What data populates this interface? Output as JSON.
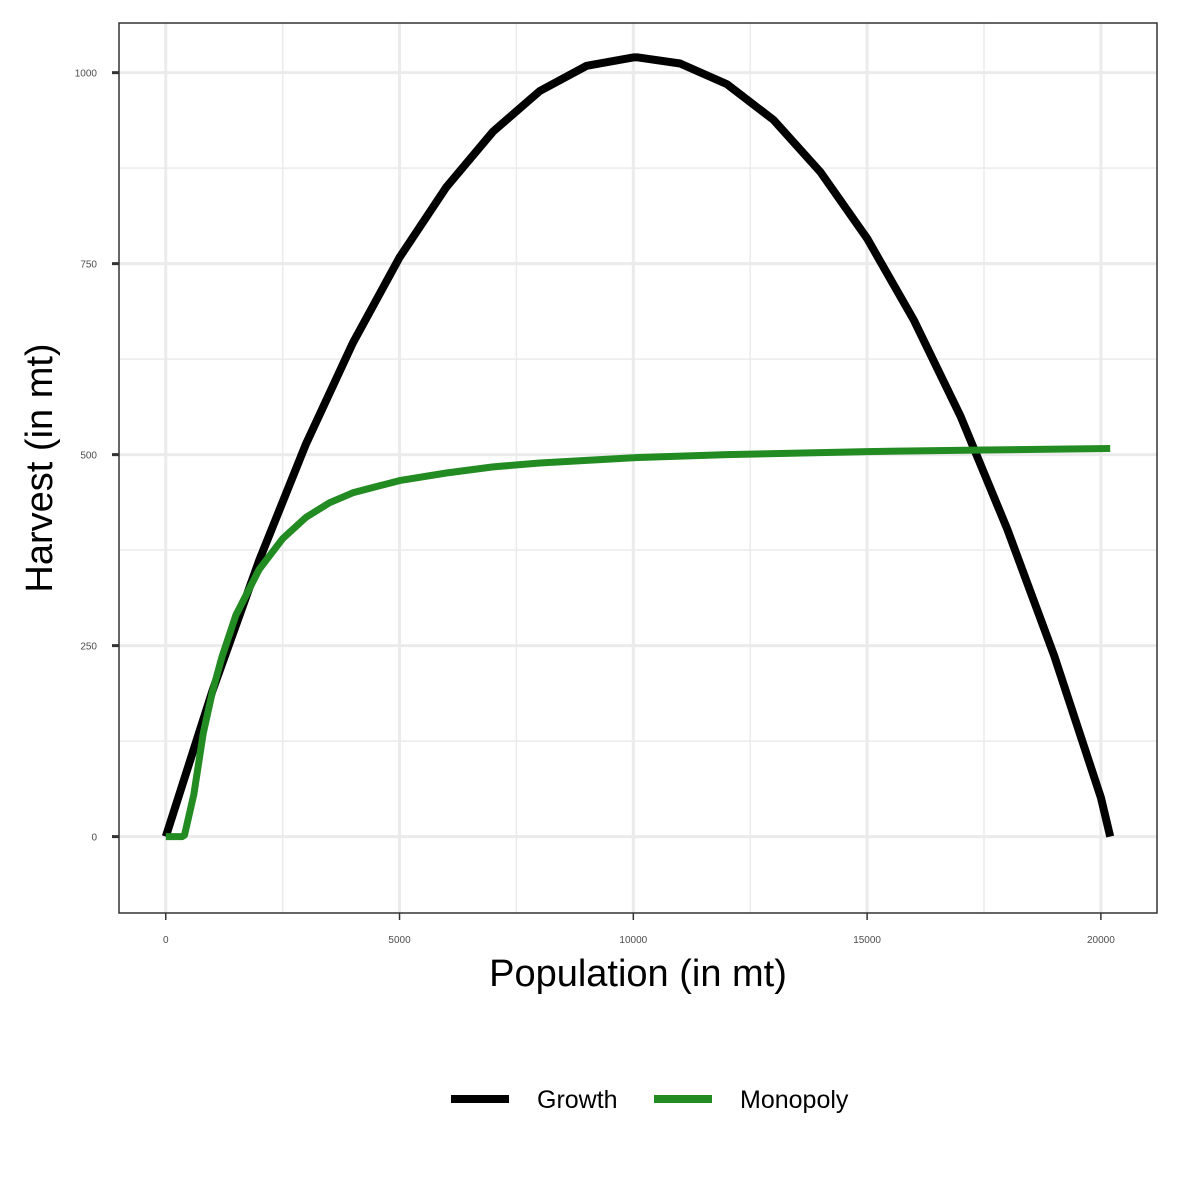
{
  "chart_data": {
    "type": "line",
    "title": "",
    "xlabel": "Population (in mt)",
    "ylabel": "Harvest (in mt)",
    "xlim": [
      -1000,
      21200
    ],
    "ylim": [
      -100,
      1065
    ],
    "x_ticks": [
      0,
      5000,
      10000,
      15000,
      20000
    ],
    "x_tick_labels": [
      "0",
      "5000",
      "10000",
      "15000",
      "20000"
    ],
    "x_minor_ticks": [
      2500,
      7500,
      12500,
      17500
    ],
    "y_ticks": [
      0,
      250,
      500,
      750,
      1000
    ],
    "y_tick_labels": [
      "0",
      "250",
      "500",
      "750",
      "1000"
    ],
    "y_minor_ticks": [
      125,
      375,
      625,
      875
    ],
    "grid": true,
    "legend_position": "bottom",
    "series": [
      {
        "name": "Growth",
        "color": "#000000",
        "x": [
          0,
          1000,
          2000,
          3000,
          4000,
          5000,
          6000,
          7000,
          8000,
          9000,
          10000,
          10100,
          11000,
          12000,
          13000,
          14000,
          15000,
          16000,
          17000,
          18000,
          19000,
          20000,
          20200
        ],
        "y": [
          0,
          191,
          362,
          514,
          646,
          758,
          850,
          923,
          976,
          1009,
          1020,
          1020,
          1012,
          985,
          938,
          870,
          783,
          676,
          550,
          402,
          237,
          51,
          0
        ]
      },
      {
        "name": "Monopoly",
        "color": "#228b22",
        "x": [
          0,
          350,
          400,
          600,
          800,
          1000,
          1200,
          1500,
          2000,
          2500,
          3000,
          3500,
          4000,
          5000,
          6000,
          7000,
          8000,
          10000,
          12000,
          15000,
          17500,
          20200
        ],
        "y": [
          0,
          0,
          2,
          55,
          135,
          190,
          235,
          290,
          350,
          390,
          418,
          437,
          450,
          466,
          476,
          484,
          489,
          496,
          500,
          504,
          506,
          508
        ]
      }
    ]
  }
}
